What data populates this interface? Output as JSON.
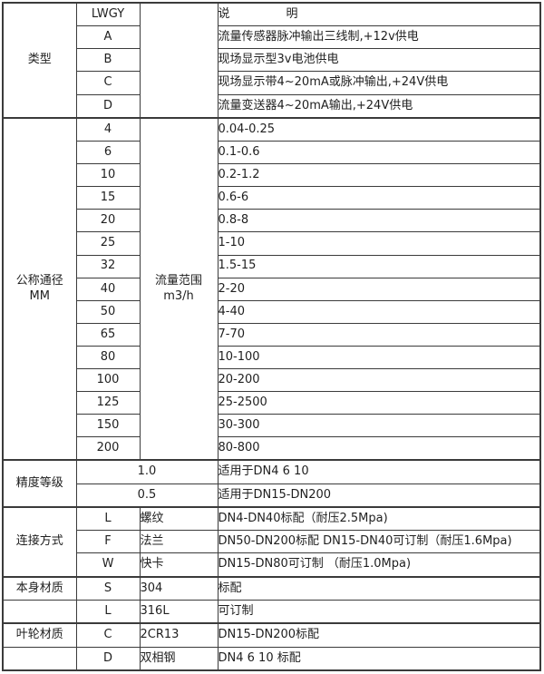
{
  "colors": {
    "border": "#3b3b3b",
    "text": "#1f1f1f",
    "background": "#ffffff"
  },
  "table": {
    "rows": [
      {
        "section": true,
        "cells": [
          {
            "t": "类型",
            "rs": 5,
            "cls": "c",
            "name": "row-group-label-type"
          },
          {
            "t": "LWGY",
            "cls": "c",
            "name": "model-code"
          },
          {
            "t": "",
            "rs": 5,
            "cls": "c",
            "name": "empty-cell"
          },
          {
            "t": "说明",
            "cls": "l spread",
            "name": "description-header"
          }
        ]
      },
      {
        "cells": [
          {
            "t": "A",
            "cls": "c",
            "name": "type-code"
          },
          {
            "t": "流量传感器脉冲输出三线制,+12v供电",
            "cls": "l",
            "name": "type-description"
          }
        ]
      },
      {
        "cells": [
          {
            "t": "B",
            "cls": "c",
            "name": "type-code"
          },
          {
            "t": "现场显示型3v电池供电",
            "cls": "l",
            "name": "type-description"
          }
        ]
      },
      {
        "cells": [
          {
            "t": "C",
            "cls": "c",
            "name": "type-code"
          },
          {
            "t": "现场显示带4~20mA或脉冲输出,+24V供电",
            "cls": "l",
            "name": "type-description"
          }
        ]
      },
      {
        "cells": [
          {
            "t": "D",
            "cls": "c",
            "name": "type-code"
          },
          {
            "t": "流量变送器4~20mA输出,+24V供电",
            "cls": "l",
            "name": "type-description"
          }
        ]
      },
      {
        "section": true,
        "cells": [
          {
            "t": "公称通径\nMM",
            "rs": 15,
            "cls": "c",
            "name": "row-group-label-diameter"
          },
          {
            "t": "4",
            "cls": "c",
            "name": "dn-value"
          },
          {
            "t": "流量范围\nm3/h",
            "rs": 15,
            "cls": "c",
            "name": "flow-range-label"
          },
          {
            "t": "0.04-0.25",
            "cls": "l",
            "name": "flow-range-value"
          }
        ]
      },
      {
        "cells": [
          {
            "t": "6",
            "cls": "c",
            "name": "dn-value"
          },
          {
            "t": "0.1-0.6",
            "cls": "l",
            "name": "flow-range-value"
          }
        ]
      },
      {
        "cells": [
          {
            "t": "10",
            "cls": "c",
            "name": "dn-value"
          },
          {
            "t": "0.2-1.2",
            "cls": "l",
            "name": "flow-range-value"
          }
        ]
      },
      {
        "cells": [
          {
            "t": "15",
            "cls": "c",
            "name": "dn-value"
          },
          {
            "t": "0.6-6",
            "cls": "l",
            "name": "flow-range-value"
          }
        ]
      },
      {
        "cells": [
          {
            "t": "20",
            "cls": "c",
            "name": "dn-value"
          },
          {
            "t": "0.8-8",
            "cls": "l",
            "name": "flow-range-value"
          }
        ]
      },
      {
        "cells": [
          {
            "t": "25",
            "cls": "c",
            "name": "dn-value"
          },
          {
            "t": "1-10",
            "cls": "l",
            "name": "flow-range-value"
          }
        ]
      },
      {
        "cells": [
          {
            "t": "32",
            "cls": "c",
            "name": "dn-value"
          },
          {
            "t": "1.5-15",
            "cls": "l",
            "name": "flow-range-value"
          }
        ]
      },
      {
        "cells": [
          {
            "t": "40",
            "cls": "c",
            "name": "dn-value"
          },
          {
            "t": "2-20",
            "cls": "l",
            "name": "flow-range-value"
          }
        ]
      },
      {
        "cells": [
          {
            "t": "50",
            "cls": "c",
            "name": "dn-value"
          },
          {
            "t": "4-40",
            "cls": "l",
            "name": "flow-range-value"
          }
        ]
      },
      {
        "cells": [
          {
            "t": "65",
            "cls": "c",
            "name": "dn-value"
          },
          {
            "t": "7-70",
            "cls": "l",
            "name": "flow-range-value"
          }
        ]
      },
      {
        "cells": [
          {
            "t": "80",
            "cls": "c",
            "name": "dn-value"
          },
          {
            "t": "10-100",
            "cls": "l",
            "name": "flow-range-value"
          }
        ]
      },
      {
        "cells": [
          {
            "t": "100",
            "cls": "c",
            "name": "dn-value"
          },
          {
            "t": "20-200",
            "cls": "l",
            "name": "flow-range-value"
          }
        ]
      },
      {
        "cells": [
          {
            "t": "125",
            "cls": "c",
            "name": "dn-value"
          },
          {
            "t": "25-2500",
            "cls": "l",
            "name": "flow-range-value"
          }
        ]
      },
      {
        "cells": [
          {
            "t": "150",
            "cls": "c",
            "name": "dn-value"
          },
          {
            "t": "30-300",
            "cls": "l",
            "name": "flow-range-value"
          }
        ]
      },
      {
        "cells": [
          {
            "t": "200",
            "cls": "c",
            "name": "dn-value"
          },
          {
            "t": "80-800",
            "cls": "l",
            "name": "flow-range-value"
          }
        ]
      },
      {
        "section": true,
        "cells": [
          {
            "t": "精度等级",
            "rs": 2,
            "cls": "c",
            "name": "row-group-label-accuracy"
          },
          {
            "t": "1.0",
            "cs": 2,
            "cls": "c",
            "name": "accuracy-value"
          },
          {
            "t": "适用于DN4  6  10",
            "cls": "l",
            "name": "accuracy-description"
          }
        ]
      },
      {
        "cells": [
          {
            "t": "0.5",
            "cs": 2,
            "cls": "c",
            "name": "accuracy-value"
          },
          {
            "t": "适用于DN15-DN200",
            "cls": "l",
            "name": "accuracy-description"
          }
        ]
      },
      {
        "section": true,
        "cells": [
          {
            "t": "连接方式",
            "rs": 3,
            "cls": "c",
            "name": "row-group-label-connection"
          },
          {
            "t": "L",
            "cls": "c",
            "name": "connection-code"
          },
          {
            "t": "螺纹",
            "cls": "l",
            "name": "connection-type"
          },
          {
            "t": "DN4-DN40标配（耐压2.5Mpa)",
            "cls": "l",
            "name": "connection-description"
          }
        ]
      },
      {
        "cells": [
          {
            "t": "F",
            "cls": "c",
            "name": "connection-code"
          },
          {
            "t": "法兰",
            "cls": "l",
            "name": "connection-type"
          },
          {
            "t": "DN50-DN200标配 DN15-DN40可订制（耐压1.6Mpa)",
            "cls": "l",
            "name": "connection-description"
          }
        ]
      },
      {
        "cells": [
          {
            "t": "W",
            "cls": "c",
            "name": "connection-code"
          },
          {
            "t": "快卡",
            "cls": "l",
            "name": "connection-type"
          },
          {
            "t": "DN15-DN80可订制 （耐压1.0Mpa)",
            "cls": "l",
            "name": "connection-description"
          }
        ]
      },
      {
        "section": true,
        "cells": [
          {
            "t": "本身材质",
            "cls": "c",
            "name": "row-group-label-body-material"
          },
          {
            "t": "S",
            "cls": "c",
            "name": "material-code"
          },
          {
            "t": "304",
            "cls": "l",
            "name": "material-name"
          },
          {
            "t": "标配",
            "cls": "l",
            "name": "material-description"
          }
        ]
      },
      {
        "cells": [
          {
            "t": "",
            "cls": "c",
            "name": "empty-cell"
          },
          {
            "t": "L",
            "cls": "c",
            "name": "material-code"
          },
          {
            "t": "316L",
            "cls": "l",
            "name": "material-name"
          },
          {
            "t": "可订制",
            "cls": "l",
            "name": "material-description"
          }
        ]
      },
      {
        "section": true,
        "cells": [
          {
            "t": "叶轮材质",
            "cls": "c",
            "name": "row-group-label-impeller-material"
          },
          {
            "t": "C",
            "cls": "c",
            "name": "material-code"
          },
          {
            "t": "2CR13",
            "cls": "l",
            "name": "material-name"
          },
          {
            "t": "DN15-DN200标配",
            "cls": "l",
            "name": "material-description"
          }
        ]
      },
      {
        "cells": [
          {
            "t": "",
            "cls": "c",
            "name": "empty-cell"
          },
          {
            "t": "D",
            "cls": "c",
            "name": "material-code"
          },
          {
            "t": "双相钢",
            "cls": "l",
            "name": "material-name"
          },
          {
            "t": "DN4 6 10 标配",
            "cls": "l",
            "name": "material-description"
          }
        ]
      }
    ]
  }
}
